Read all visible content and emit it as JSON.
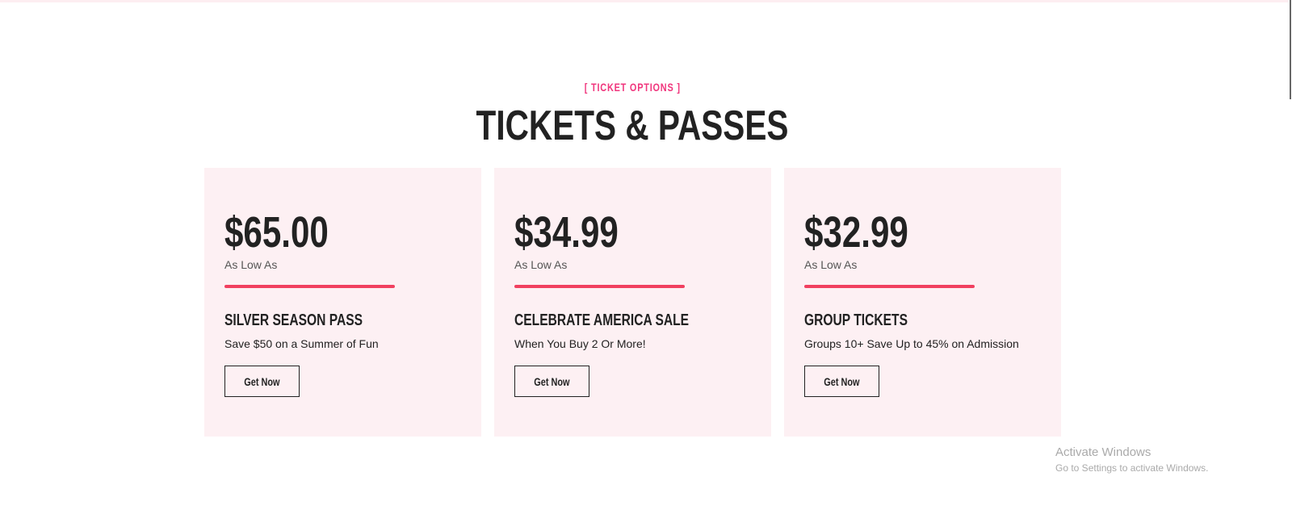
{
  "section": {
    "eyebrow": "[ TICKET OPTIONS ]",
    "title": "TICKETS & PASSES"
  },
  "cards": [
    {
      "price": "$65.00",
      "price_note": "As Low As",
      "name": "SILVER SEASON PASS",
      "description": "Save $50 on a Summer of Fun",
      "button": "Get Now"
    },
    {
      "price": "$34.99",
      "price_note": "As Low As",
      "name": "CELEBRATE AMERICA SALE",
      "description": "When You Buy 2 Or More!",
      "button": "Get Now"
    },
    {
      "price": "$32.99",
      "price_note": "As Low As",
      "name": "GROUP TICKETS",
      "description": "Groups 10+ Save Up to 45% on Admission",
      "button": "Get Now"
    }
  ],
  "watermark": {
    "title": "Activate Windows",
    "subtitle": "Go to Settings to activate Windows."
  },
  "colors": {
    "accent": "#f0367d",
    "divider": "#f1405f",
    "card_bg": "#fdf0f3"
  }
}
